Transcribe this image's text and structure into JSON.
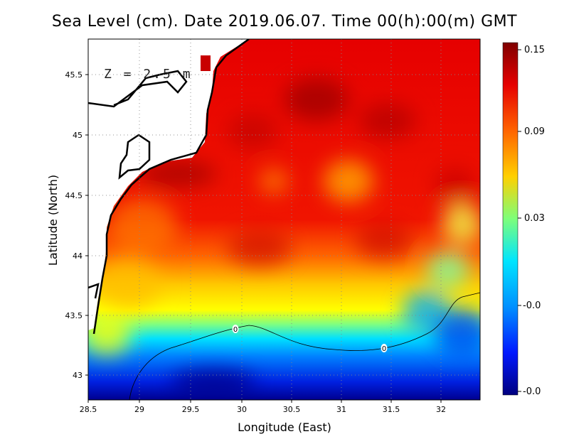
{
  "title": "Sea Level (cm). Date 2019.06.07. Time 00(h):00(m) GMT",
  "map": {
    "annotation": "Z = 2.5 m",
    "xlabel": "Longitude (East)",
    "ylabel": "Latitude (North)",
    "lon_range": [
      28.5,
      32.4
    ],
    "lat_range": [
      42.8,
      45.8
    ],
    "x_ticks": [
      "28.5",
      "29",
      "29.5",
      "30",
      "30.5",
      "31",
      "31.5",
      "32"
    ],
    "y_ticks": [
      "43",
      "43.5",
      "44",
      "44.5",
      "45",
      "45.5"
    ],
    "contour_label": "0",
    "grid": "dotted"
  },
  "colorbar": {
    "labels": [
      "0.15",
      "0.09",
      "0.03",
      "-0.0",
      "-0.0"
    ],
    "colors": [
      "#7f0000",
      "#e60000",
      "#ff8c00",
      "#ffeb00",
      "#7dff7a",
      "#00e5ff",
      "#0090ff",
      "#0018ff",
      "#00007f"
    ]
  }
}
